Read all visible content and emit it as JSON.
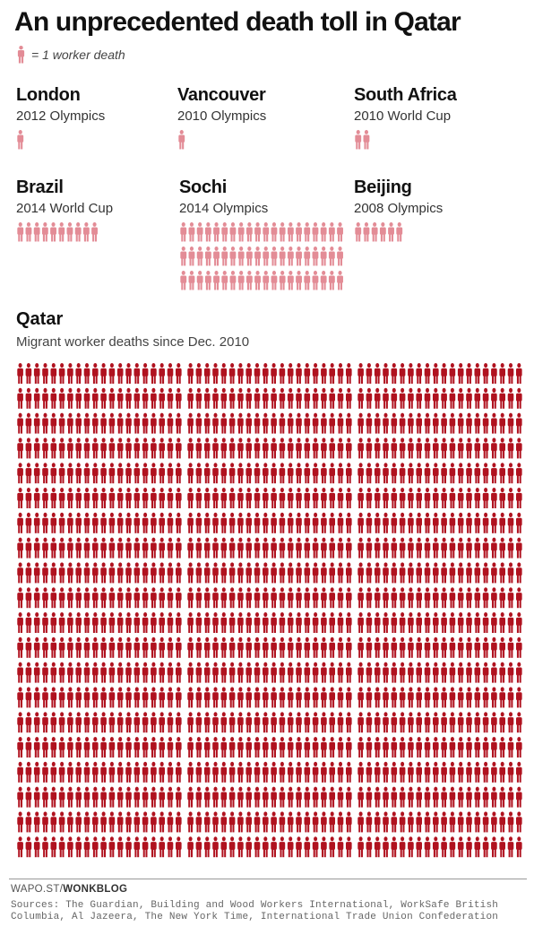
{
  "title": "An unprecedented death toll in Qatar",
  "legend": {
    "text": "= 1 worker death",
    "icon": "person-icon"
  },
  "colors": {
    "light": "#e38c96",
    "dark": "#b0121f",
    "text": "#111111"
  },
  "events": [
    {
      "name": "London",
      "sub": "2012 Olympics",
      "deaths": 1
    },
    {
      "name": "Vancouver",
      "sub": "2010 Olympics",
      "deaths": 1
    },
    {
      "name": "South Africa",
      "sub": "2010 World Cup",
      "deaths": 2
    },
    {
      "name": "Brazil",
      "sub": "2014 World Cup",
      "deaths": 10
    },
    {
      "name": "Sochi",
      "sub": "2014 Olympics",
      "deaths": 60
    },
    {
      "name": "Beijing",
      "sub": "2008 Olympics",
      "deaths": 6
    }
  ],
  "qatar": {
    "name": "Qatar",
    "sub": "Migrant worker deaths since Dec. 2010",
    "deaths": 1200
  },
  "footer": {
    "credit_prefix": "WAPO.ST/",
    "credit_bold": "WONKBLOG",
    "sources": "Sources: The Guardian, Building and Wood Workers International, WorkSafe British Columbia, Al Jazeera, The New York Time, International Trade Union Confederation"
  },
  "chart_data": {
    "type": "pictogram",
    "categories": [
      "London",
      "Vancouver",
      "South Africa",
      "Brazil",
      "Sochi",
      "Beijing",
      "Qatar"
    ],
    "values": [
      1,
      1,
      2,
      10,
      60,
      6,
      1200
    ],
    "unit": "worker deaths",
    "title": "An unprecedented death toll in Qatar"
  }
}
